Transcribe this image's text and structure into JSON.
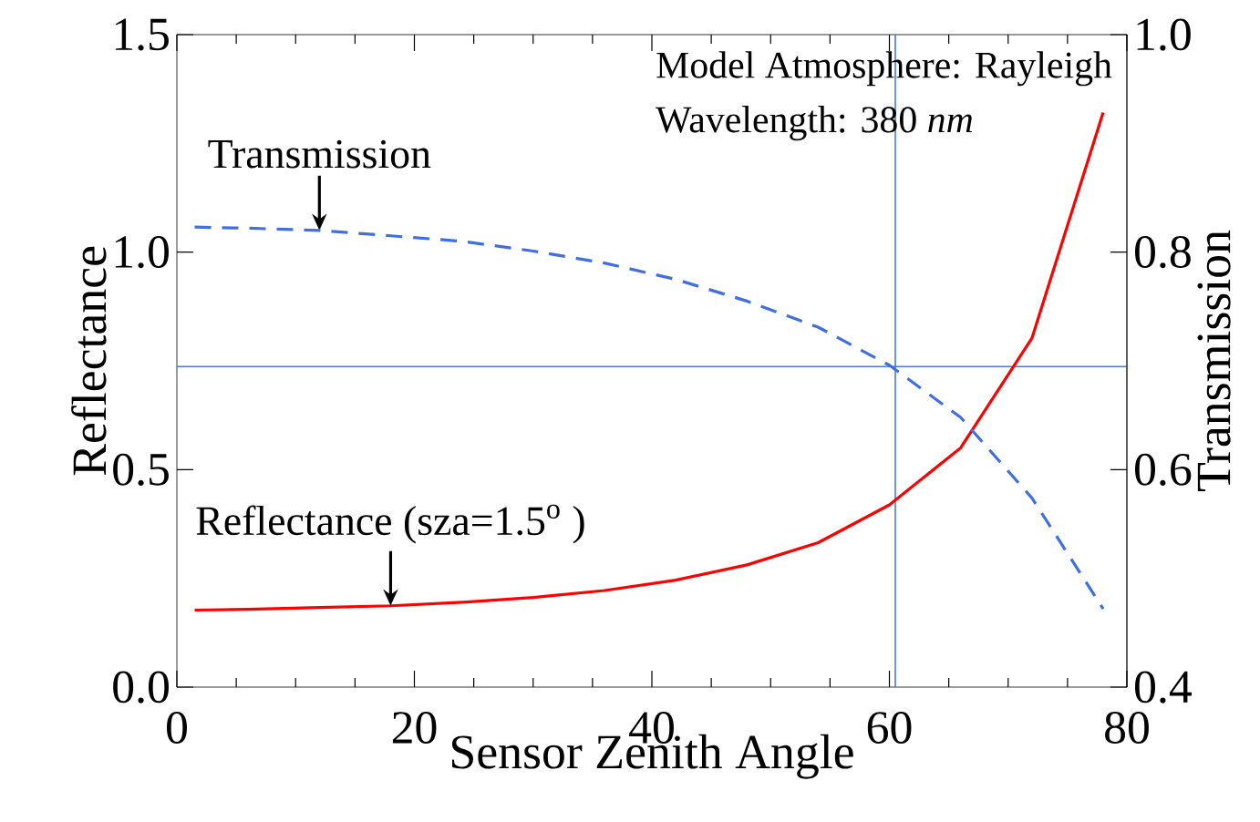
{
  "chart_data": {
    "type": "line",
    "xlabel": "Sensor Zenith Angle",
    "ylabel": "Reflectance",
    "y2label": "Transmission",
    "xlim": [
      0,
      80
    ],
    "ylim": [
      0,
      1.5
    ],
    "y2lim": [
      0.4,
      1.0
    ],
    "xticks": [
      0,
      20,
      40,
      60,
      80
    ],
    "yticks": [
      {
        "value": 0,
        "label": "0.0"
      },
      0.5,
      {
        "value": 1,
        "label": "1.0"
      },
      1.5
    ],
    "y2ticks": [
      0.4,
      0.6,
      0.8,
      {
        "value": 1,
        "label": "1.0"
      }
    ],
    "series": [
      {
        "type": "line",
        "color": "#ff0000",
        "line_style": "solid",
        "x": [
          1.5,
          6,
          12,
          18,
          24,
          30,
          36,
          42,
          48,
          54,
          60,
          66,
          72,
          78
        ],
        "values": [
          0.177,
          0.179,
          0.183,
          0.187,
          0.195,
          0.206,
          0.222,
          0.246,
          0.281,
          0.332,
          0.419,
          0.55,
          0.802,
          1.321
        ]
      },
      {
        "type": "line",
        "color": "#3f6fe0",
        "line_style": "dashed",
        "axis": "y2",
        "x": [
          1.5,
          6,
          12,
          18,
          24,
          30,
          36,
          42,
          48,
          54,
          60,
          66,
          72,
          78
        ],
        "values": [
          0.823,
          0.822,
          0.82,
          0.815,
          0.81,
          0.801,
          0.79,
          0.775,
          0.755,
          0.731,
          0.696,
          0.648,
          0.574,
          0.472
        ]
      }
    ],
    "ref_lines": [
      {
        "axis": "y",
        "value": 0.737,
        "color": "#4a7cc9"
      },
      {
        "axis": "x",
        "value": 60.5,
        "color": "#4a7cc9"
      }
    ],
    "annotations": [
      {
        "text": "Transmission",
        "x": 12,
        "y": 1.05
      },
      {
        "text": "Reflectance (sza=1.5$^{o}$ )",
        "x": 18,
        "y": 0.187
      },
      "Model Atmosphere: Rayleigh",
      "Wavelength:          380 *nm*"
    ]
  }
}
